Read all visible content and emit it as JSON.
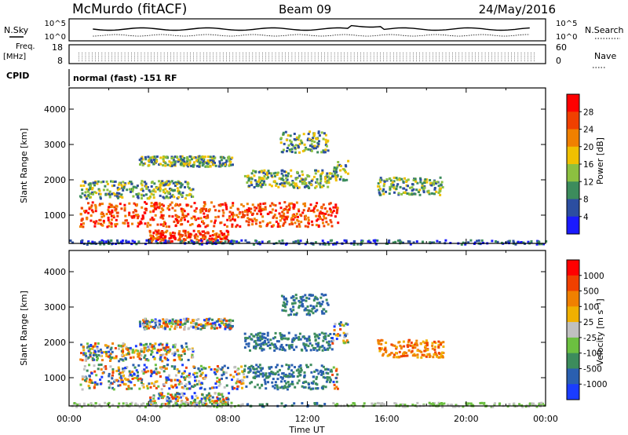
{
  "header": {
    "station": "McMurdo (fitACF)",
    "beam": "Beam 09",
    "date": "24/May/2016"
  },
  "top_panels": {
    "nsky_label": "N.Sky",
    "nsearch_label": "N.Search",
    "exp_ticks_left": [
      "10^5",
      "10^0"
    ],
    "exp_ticks_right": [
      "10^5",
      "10^0"
    ],
    "freq_label": "Freq.",
    "freq_unit": "[MHz]",
    "freq_ticks": [
      "18",
      "8"
    ],
    "nave_label": "Nave",
    "nave_ticks": [
      "60",
      "0"
    ],
    "cpid_label": "CPID",
    "cpid_value": "normal (fast) -151 RF"
  },
  "colors": {
    "power_scale": [
      "#1a1aff",
      "#2c4ea0",
      "#3c8c5c",
      "#8cc040",
      "#f0c000",
      "#f08000",
      "#f04000",
      "#ff0000"
    ],
    "velocity_scale": [
      "#1a3cff",
      "#2a5fb0",
      "#3c8c5c",
      "#6cc040",
      "#c0c0c0",
      "#f0b000",
      "#f08000",
      "#f04000",
      "#ff0000"
    ]
  },
  "chart_data": [
    {
      "type": "heatmap",
      "panel": "power",
      "ylabel": "Slant Range [km]",
      "yticks": [
        "1000",
        "2000",
        "3000",
        "4000"
      ],
      "ylim": [
        200,
        4600
      ],
      "xlim_hours": [
        0,
        24
      ],
      "colorbar_label": "Power [dB]",
      "colorbar_ticks": [
        "4",
        "8",
        "12",
        "16",
        "20",
        "24",
        "28"
      ],
      "colorbar_range": [
        0,
        32
      ]
    },
    {
      "type": "heatmap",
      "panel": "velocity",
      "ylabel": "Slant Range [km]",
      "yticks": [
        "1000",
        "2000",
        "3000",
        "4000"
      ],
      "ylim": [
        200,
        4600
      ],
      "xlim_hours": [
        0,
        24
      ],
      "colorbar_label": "Velocity [m s⁻¹]",
      "colorbar_ticks": [
        "1000",
        "500",
        "100",
        "25",
        "-25",
        "-100",
        "-500",
        "-1000"
      ]
    }
  ],
  "xaxis": {
    "label": "Time UT",
    "ticks": [
      "00:00",
      "04:00",
      "08:00",
      "12:00",
      "16:00",
      "20:00",
      "00:00"
    ]
  }
}
